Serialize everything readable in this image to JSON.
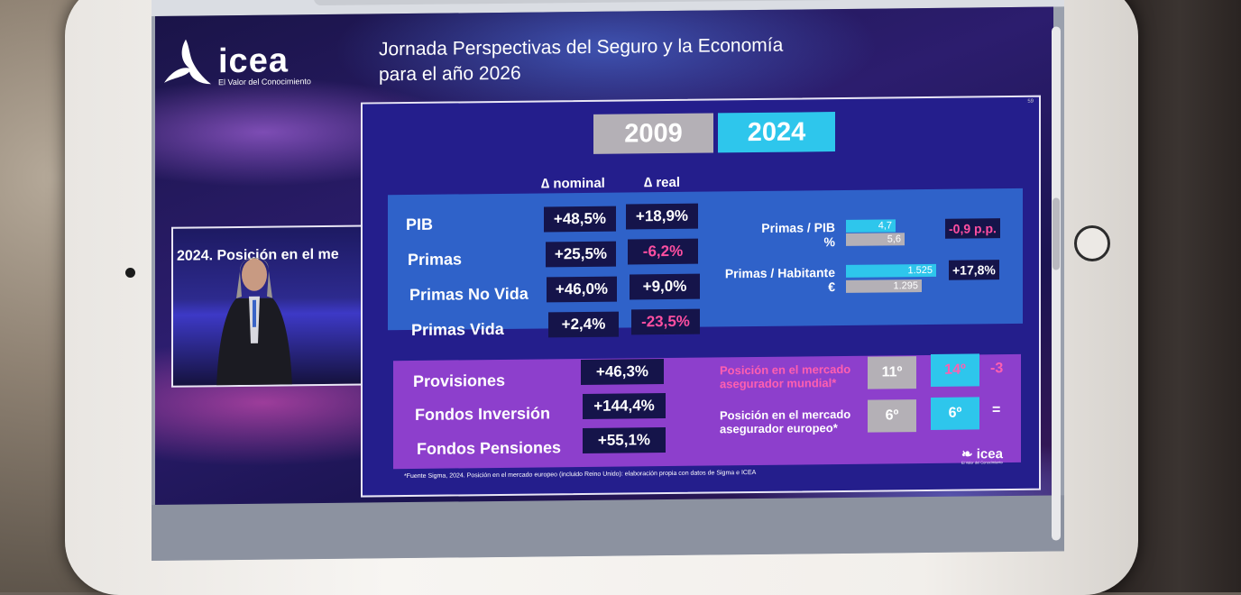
{
  "branding": {
    "logo_name": "icea",
    "logo_tagline": "El Valor del Conocimiento"
  },
  "headline": {
    "line1": "Jornada Perspectivas del Seguro y la Economía",
    "line2": "para el año 2026"
  },
  "speaker_video": {
    "caption": "2024. Posición en el me"
  },
  "slide": {
    "page_number": "59",
    "years": [
      "2009",
      "2024"
    ],
    "col_headers": {
      "nominal": "∆ nominal",
      "real": "∆ real"
    },
    "rows": [
      {
        "label": "PIB",
        "nominal": "+48,5%",
        "real": "+18,9%",
        "real_negative": false
      },
      {
        "label": "Primas",
        "nominal": "+25,5%",
        "real": "-6,2%",
        "real_negative": true
      },
      {
        "label": "Primas No Vida",
        "nominal": "+46,0%",
        "real": "+9,0%",
        "real_negative": false
      },
      {
        "label": "Primas Vida",
        "nominal": "+2,4%",
        "real": "-23,5%",
        "real_negative": true
      }
    ],
    "ratios": [
      {
        "label_line1": "Primas / PIB",
        "label_line2": "%",
        "v2024": "4,7",
        "v2009": "5,6",
        "delta": "-0,9 p.p.",
        "delta_negative": true,
        "frac2024": 0.47,
        "frac2009": 0.56
      },
      {
        "label_line1": "Primas / Habitante",
        "label_line2": "€",
        "v2024": "1.525",
        "v2009": "1.295",
        "delta": "+17,8%",
        "delta_negative": false,
        "frac2024": 0.86,
        "frac2009": 0.72
      }
    ],
    "funds": [
      {
        "label": "Provisiones",
        "value": "+46,3%"
      },
      {
        "label": "Fondos Inversión",
        "value": "+144,4%"
      },
      {
        "label": "Fondos Pensiones",
        "value": "+55,1%"
      }
    ],
    "positions": [
      {
        "label_line1": "Posición en el mercado",
        "label_line2": "asegurador mundial*",
        "p2009": "11º",
        "p2024": "14º",
        "diff": "-3",
        "highlight": true
      },
      {
        "label_line1": "Posición en el mercado",
        "label_line2": "asegurador europeo*",
        "p2009": "6º",
        "p2024": "6º",
        "diff": "=",
        "highlight": false
      }
    ],
    "footnote": "*Fuente Sigma, 2024. Posición en el mercado europeo (incluido Reino Unido): elaboración propia con datos de Sigma e ICEA",
    "mini_logo": "icea",
    "mini_logo_tagline": "El Valor del Conocimiento"
  },
  "colors": {
    "panel_bg": "#241e8c",
    "blue_block": "#2f62c9",
    "purple_block": "#8d3fcc",
    "accent_cyan": "#2ec6ec",
    "neutral_grey": "#b4b0b6",
    "negative_pink": "#ff4fa1"
  }
}
